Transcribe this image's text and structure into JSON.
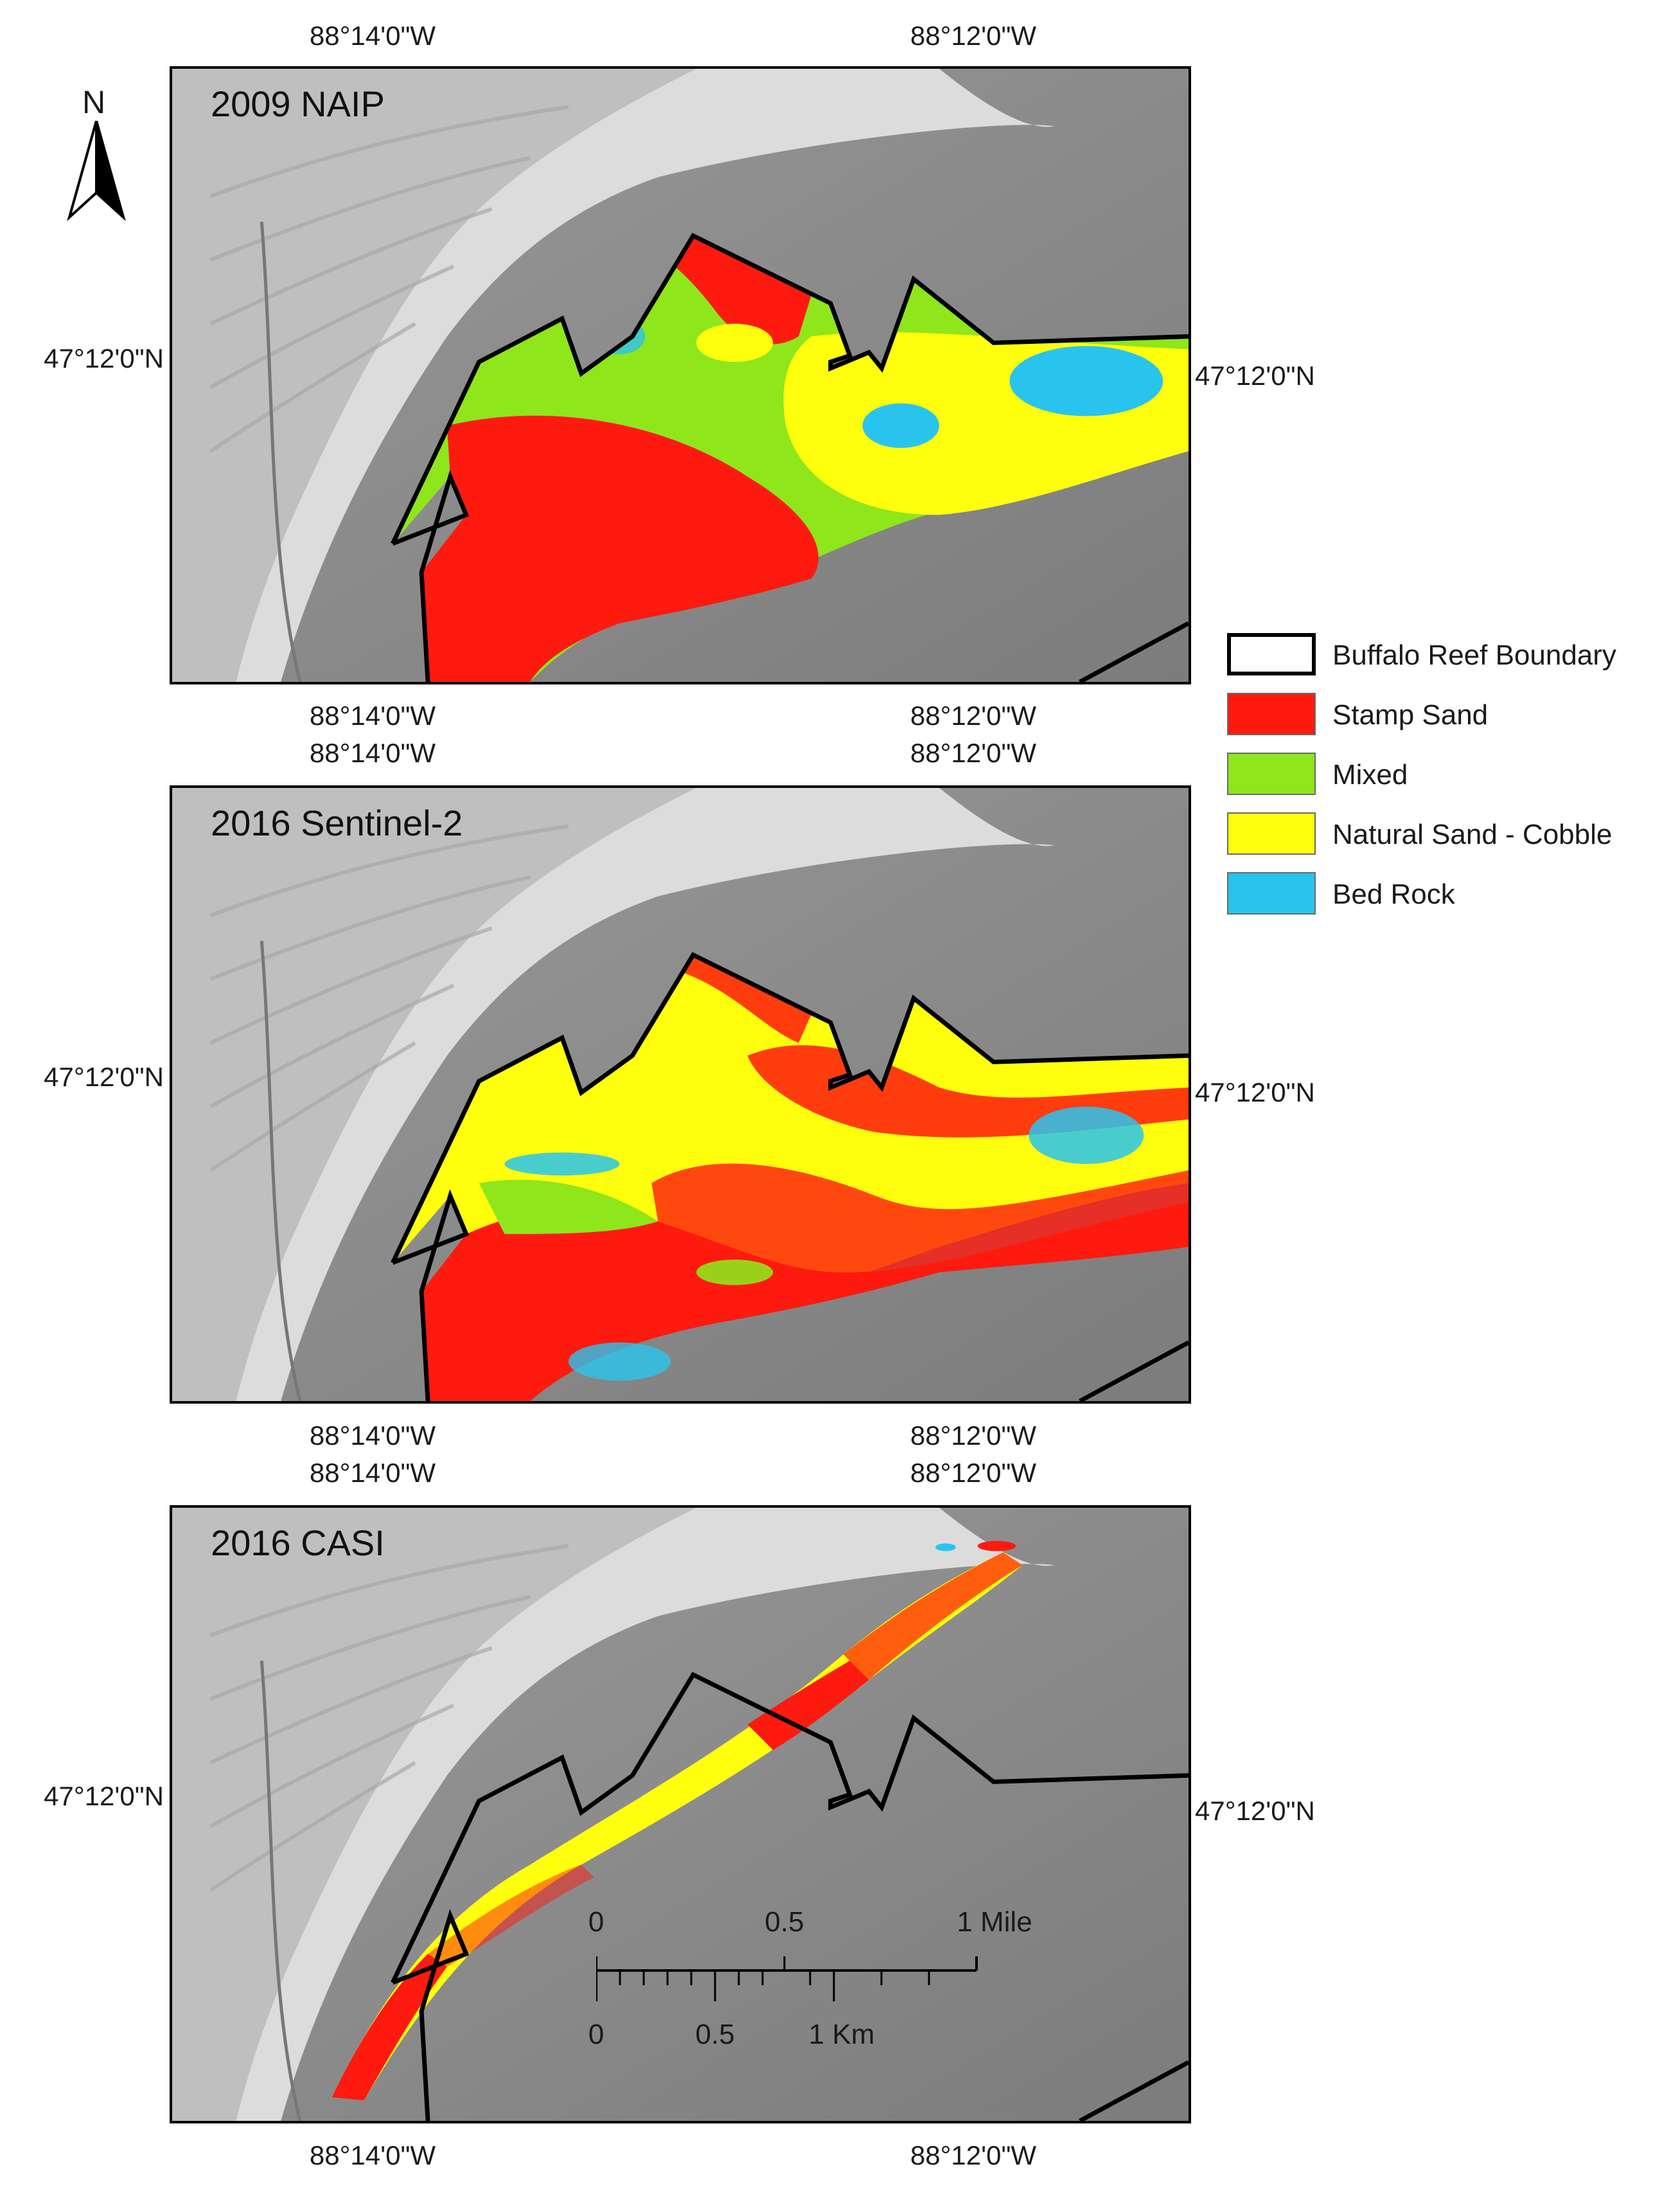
{
  "north_arrow": {
    "label": "N"
  },
  "coords": {
    "lon_west": "88°14'0\"W",
    "lon_east": "88°12'0\"W",
    "lat": "47°12'0\"N"
  },
  "panels": [
    {
      "title": "2009 NAIP"
    },
    {
      "title": "2016 Sentinel-2"
    },
    {
      "title": "2016 CASI"
    }
  ],
  "legend": {
    "items": [
      {
        "label": "Buffalo Reef Boundary",
        "color": "#ffffff",
        "outline": "#000000"
      },
      {
        "label": "Stamp Sand",
        "color": "#ff1a0f"
      },
      {
        "label": "Mixed",
        "color": "#8fe61a"
      },
      {
        "label": "Natural Sand - Cobble",
        "color": "#ffff0d"
      },
      {
        "label": "Bed Rock",
        "color": "#29c4ee"
      }
    ]
  },
  "scalebar": {
    "miles": [
      "0",
      "0.5",
      "1 Mile"
    ],
    "km": [
      "0",
      "0.5",
      "1 Km"
    ]
  }
}
